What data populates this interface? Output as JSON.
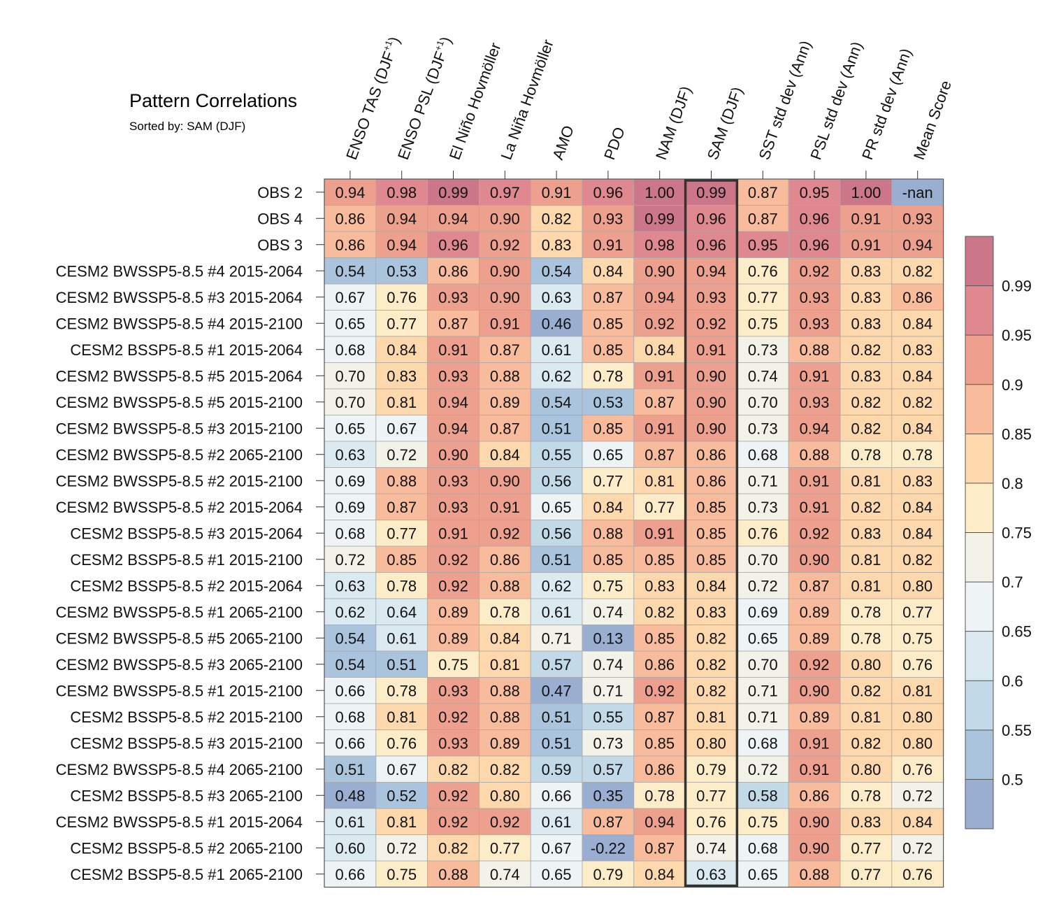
{
  "title": "Pattern Correlations",
  "subtitle": "Sorted by: SAM (DJF)",
  "chart_data": {
    "type": "heatmap",
    "title": "Pattern Correlations",
    "subtitle": "Sorted by: SAM (DJF)",
    "columns": [
      "ENSO TAS (DJF+1)",
      "ENSO PSL (DJF+1)",
      "El Niño Hovmöller",
      "La Niña Hovmöller",
      "AMO",
      "PDO",
      "NAM (DJF)",
      "SAM (DJF)",
      "SST std dev (Ann)",
      "PSL std dev (Ann)",
      "PR std dev (Ann)",
      "Mean Score"
    ],
    "highlighted_column": "SAM (DJF)",
    "rows": [
      "OBS 2",
      "OBS 4",
      "OBS 3",
      "CESM2 BWSSP5-8.5 #4 2015-2064",
      "CESM2 BWSSP5-8.5 #3 2015-2064",
      "CESM2 BWSSP5-8.5 #4 2015-2100",
      "CESM2 BSSP5-8.5 #1 2015-2064",
      "CESM2 BWSSP5-8.5 #5 2015-2064",
      "CESM2 BWSSP5-8.5 #5 2015-2100",
      "CESM2 BWSSP5-8.5 #3 2015-2100",
      "CESM2 BWSSP5-8.5 #2 2065-2100",
      "CESM2 BWSSP5-8.5 #2 2015-2100",
      "CESM2 BWSSP5-8.5 #2 2015-2064",
      "CESM2 BSSP5-8.5 #3 2015-2064",
      "CESM2 BSSP5-8.5 #1 2015-2100",
      "CESM2 BSSP5-8.5 #2 2015-2064",
      "CESM2 BWSSP5-8.5 #1 2065-2100",
      "CESM2 BWSSP5-8.5 #5 2065-2100",
      "CESM2 BWSSP5-8.5 #3 2065-2100",
      "CESM2 BWSSP5-8.5 #1 2015-2100",
      "CESM2 BSSP5-8.5 #2 2015-2100",
      "CESM2 BSSP5-8.5 #3 2015-2100",
      "CESM2 BWSSP5-8.5 #4 2065-2100",
      "CESM2 BSSP5-8.5 #3 2065-2100",
      "CESM2 BWSSP5-8.5 #1 2015-2064",
      "CESM2 BSSP5-8.5 #2 2065-2100",
      "CESM2 BSSP5-8.5 #1 2065-2100"
    ],
    "values": [
      [
        "0.94",
        "0.98",
        "0.99",
        "0.97",
        "0.91",
        "0.96",
        "1.00",
        "0.99",
        "0.87",
        "0.95",
        "1.00",
        "-nan"
      ],
      [
        "0.86",
        "0.94",
        "0.94",
        "0.90",
        "0.82",
        "0.93",
        "0.99",
        "0.96",
        "0.87",
        "0.96",
        "0.91",
        "0.93"
      ],
      [
        "0.86",
        "0.94",
        "0.96",
        "0.92",
        "0.83",
        "0.91",
        "0.98",
        "0.96",
        "0.95",
        "0.96",
        "0.91",
        "0.94"
      ],
      [
        "0.54",
        "0.53",
        "0.86",
        "0.90",
        "0.54",
        "0.84",
        "0.90",
        "0.94",
        "0.76",
        "0.92",
        "0.83",
        "0.82"
      ],
      [
        "0.67",
        "0.76",
        "0.93",
        "0.90",
        "0.63",
        "0.87",
        "0.94",
        "0.93",
        "0.77",
        "0.93",
        "0.83",
        "0.86"
      ],
      [
        "0.65",
        "0.77",
        "0.87",
        "0.91",
        "0.46",
        "0.85",
        "0.92",
        "0.92",
        "0.75",
        "0.93",
        "0.83",
        "0.84"
      ],
      [
        "0.68",
        "0.84",
        "0.91",
        "0.87",
        "0.61",
        "0.85",
        "0.84",
        "0.91",
        "0.73",
        "0.88",
        "0.82",
        "0.83"
      ],
      [
        "0.70",
        "0.83",
        "0.93",
        "0.88",
        "0.62",
        "0.78",
        "0.91",
        "0.90",
        "0.74",
        "0.91",
        "0.83",
        "0.84"
      ],
      [
        "0.70",
        "0.81",
        "0.94",
        "0.89",
        "0.54",
        "0.53",
        "0.87",
        "0.90",
        "0.70",
        "0.93",
        "0.82",
        "0.82"
      ],
      [
        "0.65",
        "0.67",
        "0.94",
        "0.87",
        "0.51",
        "0.85",
        "0.91",
        "0.90",
        "0.73",
        "0.94",
        "0.82",
        "0.84"
      ],
      [
        "0.63",
        "0.72",
        "0.90",
        "0.84",
        "0.55",
        "0.65",
        "0.87",
        "0.86",
        "0.68",
        "0.88",
        "0.78",
        "0.78"
      ],
      [
        "0.69",
        "0.88",
        "0.93",
        "0.90",
        "0.56",
        "0.77",
        "0.81",
        "0.86",
        "0.71",
        "0.91",
        "0.81",
        "0.83"
      ],
      [
        "0.69",
        "0.87",
        "0.93",
        "0.91",
        "0.65",
        "0.84",
        "0.77",
        "0.85",
        "0.73",
        "0.91",
        "0.82",
        "0.84"
      ],
      [
        "0.68",
        "0.77",
        "0.91",
        "0.92",
        "0.56",
        "0.88",
        "0.91",
        "0.85",
        "0.76",
        "0.92",
        "0.83",
        "0.84"
      ],
      [
        "0.72",
        "0.85",
        "0.92",
        "0.86",
        "0.51",
        "0.85",
        "0.85",
        "0.85",
        "0.70",
        "0.90",
        "0.81",
        "0.82"
      ],
      [
        "0.63",
        "0.78",
        "0.92",
        "0.88",
        "0.62",
        "0.75",
        "0.83",
        "0.84",
        "0.72",
        "0.87",
        "0.81",
        "0.80"
      ],
      [
        "0.62",
        "0.64",
        "0.89",
        "0.78",
        "0.61",
        "0.74",
        "0.82",
        "0.83",
        "0.69",
        "0.89",
        "0.78",
        "0.77"
      ],
      [
        "0.54",
        "0.61",
        "0.89",
        "0.84",
        "0.71",
        "0.13",
        "0.85",
        "0.82",
        "0.65",
        "0.89",
        "0.78",
        "0.75"
      ],
      [
        "0.54",
        "0.51",
        "0.75",
        "0.81",
        "0.57",
        "0.74",
        "0.86",
        "0.82",
        "0.70",
        "0.92",
        "0.80",
        "0.76"
      ],
      [
        "0.66",
        "0.78",
        "0.93",
        "0.88",
        "0.47",
        "0.71",
        "0.92",
        "0.82",
        "0.71",
        "0.90",
        "0.82",
        "0.81"
      ],
      [
        "0.68",
        "0.81",
        "0.92",
        "0.88",
        "0.51",
        "0.55",
        "0.87",
        "0.81",
        "0.71",
        "0.89",
        "0.81",
        "0.80"
      ],
      [
        "0.66",
        "0.76",
        "0.93",
        "0.89",
        "0.51",
        "0.73",
        "0.85",
        "0.80",
        "0.68",
        "0.91",
        "0.82",
        "0.80"
      ],
      [
        "0.51",
        "0.67",
        "0.82",
        "0.82",
        "0.59",
        "0.57",
        "0.86",
        "0.79",
        "0.72",
        "0.91",
        "0.80",
        "0.76"
      ],
      [
        "0.48",
        "0.52",
        "0.92",
        "0.80",
        "0.66",
        "0.35",
        "0.78",
        "0.77",
        "0.58",
        "0.86",
        "0.78",
        "0.72"
      ],
      [
        "0.61",
        "0.81",
        "0.92",
        "0.92",
        "0.61",
        "0.87",
        "0.94",
        "0.76",
        "0.75",
        "0.90",
        "0.83",
        "0.84"
      ],
      [
        "0.60",
        "0.72",
        "0.82",
        "0.77",
        "0.67",
        "-0.22",
        "0.87",
        "0.74",
        "0.68",
        "0.90",
        "0.77",
        "0.72"
      ],
      [
        "0.66",
        "0.75",
        "0.88",
        "0.74",
        "0.65",
        "0.79",
        "0.84",
        "0.63",
        "0.65",
        "0.88",
        "0.77",
        "0.76"
      ]
    ],
    "colorbar": {
      "tick_labels": [
        "0.99",
        "0.95",
        "0.9",
        "0.85",
        "0.8",
        "0.75",
        "0.7",
        "0.65",
        "0.6",
        "0.55",
        "0.5"
      ],
      "bin_edges": [
        0.5,
        0.55,
        0.6,
        0.65,
        0.7,
        0.75,
        0.8,
        0.85,
        0.9,
        0.95,
        0.99
      ],
      "colors_low_to_high": [
        "#9aaed2",
        "#abc4de",
        "#c2d9e8",
        "#dbe9f1",
        "#eef4f6",
        "#f3f2e8",
        "#fcecc8",
        "#fcd8ac",
        "#f8bc9c",
        "#eea08e",
        "#e08890",
        "#cc7689"
      ],
      "nan_color": "#9aaed2"
    }
  }
}
